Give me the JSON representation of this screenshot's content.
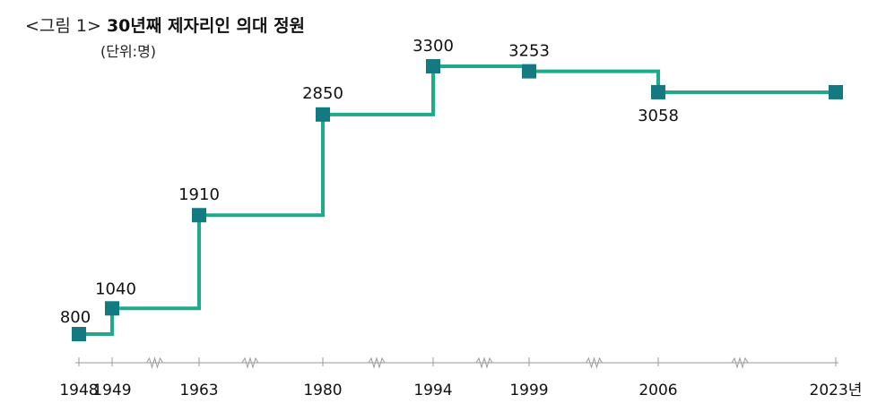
{
  "figure": {
    "prefix": "<그림 1>",
    "title": "30년째 제자리인 의대 정원",
    "unit": "(단위:명)"
  },
  "chart_data": {
    "type": "line",
    "step": true,
    "title": "30년째 제자리인 의대 정원",
    "ylabel": "(단위:명)",
    "x": [
      "1948",
      "1949",
      "1963",
      "1980",
      "1994",
      "1999",
      "2006",
      "2023년"
    ],
    "values": [
      800,
      1040,
      1910,
      2850,
      3300,
      3253,
      3058,
      3058
    ],
    "labels": [
      "800",
      "1040",
      "1910",
      "2850",
      "3300",
      "3253",
      "3058",
      ""
    ],
    "ylim": [
      600,
      3400
    ],
    "grid": false,
    "line_color": "#1faa8a",
    "marker_color": "#127a80"
  }
}
